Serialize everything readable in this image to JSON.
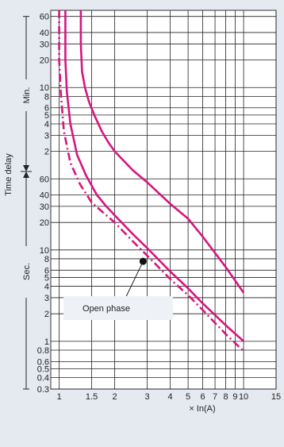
{
  "chart_data": {
    "type": "line",
    "title": "",
    "xlabel": "× In(A)",
    "ylabel": "Time delay",
    "x_scale": "log",
    "y_scale": "log",
    "grid": true,
    "xlim": [
      0.9,
      15
    ],
    "ylim_seconds": [
      0.3,
      4200
    ],
    "x_tick_labels": [
      "1",
      "1.5",
      "2",
      "3",
      "4",
      "5",
      "6",
      "7",
      "8",
      "9",
      "10",
      "15"
    ],
    "x_tick_values": [
      1,
      1.5,
      2,
      3,
      4,
      5,
      6,
      7,
      8,
      9,
      10,
      15
    ],
    "y_segments": [
      {
        "label": "Min.",
        "tick_labels": [
          "60",
          "40",
          "30",
          "20",
          "10",
          "8",
          "6",
          "5",
          "4",
          "3",
          "2"
        ],
        "tick_values_min": [
          60,
          40,
          30,
          20,
          10,
          8,
          6,
          5,
          4,
          3,
          2
        ]
      },
      {
        "label": "Sec.",
        "tick_labels": [
          "60",
          "40",
          "30",
          "20",
          "10",
          "8",
          "6",
          "5",
          "4",
          "3",
          "2",
          "1",
          "0.8",
          "0.6",
          "0.5",
          "0.4",
          "0.3"
        ],
        "tick_values_s": [
          60,
          40,
          30,
          20,
          10,
          8,
          6,
          5,
          4,
          3,
          2,
          1,
          0.8,
          0.6,
          0.5,
          0.4,
          0.3
        ]
      }
    ],
    "series": [
      {
        "style": "solid",
        "color": "#d6157e",
        "x": [
          1.31,
          1.31,
          1.33,
          1.38,
          1.45,
          1.55,
          1.7,
          1.85,
          2.0,
          2.5,
          3.0,
          4.0,
          5.0,
          6.0,
          8.0,
          10.0
        ],
        "y_s": [
          4200,
          1800,
          900,
          600,
          420,
          300,
          200,
          150,
          120,
          75,
          55,
          32,
          22,
          14,
          6.5,
          3.4
        ]
      },
      {
        "style": "solid",
        "color": "#d6157e",
        "x": [
          1.08,
          1.08,
          1.1,
          1.15,
          1.25,
          1.4,
          1.6,
          1.8,
          2.0,
          2.5,
          3.0,
          4.0,
          5.0,
          6.0,
          8.0,
          10.0
        ],
        "y_s": [
          4200,
          1200,
          540,
          240,
          110,
          65,
          40,
          30,
          24,
          15,
          10.5,
          5.8,
          3.8,
          2.6,
          1.5,
          1.0
        ]
      },
      {
        "style": "dashdot",
        "color": "#d6157e",
        "x": [
          1.0,
          1.0,
          1.02,
          1.06,
          1.15,
          1.3,
          1.5,
          1.8,
          2.0,
          2.5,
          3.0,
          4.0,
          5.0,
          6.0,
          8.0,
          10.0
        ],
        "y_s": [
          4200,
          1200,
          540,
          200,
          90,
          52,
          33,
          24,
          20,
          12.5,
          8.7,
          4.8,
          3.2,
          2.2,
          1.2,
          0.78
        ]
      }
    ],
    "annotations": [
      {
        "text": "Open phase",
        "point_x": 2.85,
        "point_y_s": 7.5
      }
    ]
  }
}
